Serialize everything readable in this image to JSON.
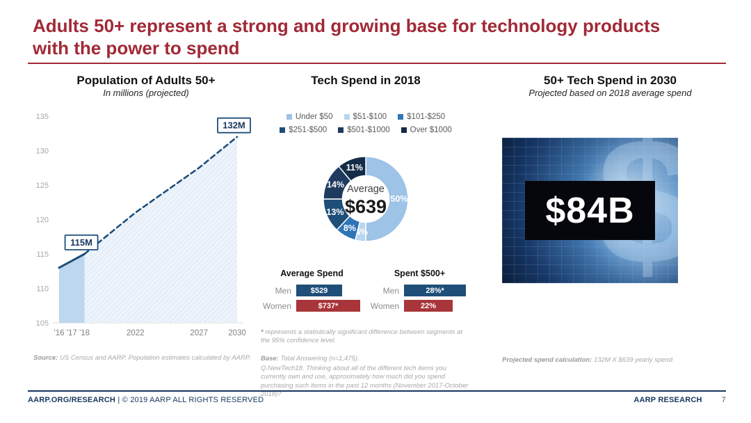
{
  "slide": {
    "title": "Adults 50+ represent a strong and growing base for technology products with the power to spend",
    "accent_red": "#a12936",
    "accent_navy": "#1f4e79",
    "footer_left_bold": "AARP.ORG/RESEARCH",
    "footer_left_rest": " | © 2019 AARP ALL RIGHTS RESERVED",
    "footer_right": "AARP RESEARCH",
    "page_number": "7"
  },
  "chart_data": [
    {
      "type": "line",
      "title": "Population of Adults 50+",
      "subtitle": "In millions (projected)",
      "x": [
        2016,
        2017,
        2018,
        2022,
        2027,
        2030
      ],
      "xtick_labels": [
        "'16",
        "'17",
        "'18",
        "2022",
        "2027",
        "2030"
      ],
      "values": [
        113,
        114,
        115,
        121,
        127.5,
        132
      ],
      "solid_through": 2018,
      "projection_style": "dashed",
      "ylim": [
        105,
        135
      ],
      "yticks": [
        105,
        110,
        115,
        120,
        125,
        130,
        135
      ],
      "annotations": [
        {
          "x": 2018,
          "label": "115M"
        },
        {
          "x": 2030,
          "label": "132M"
        }
      ],
      "line_color": "#1f4e79",
      "area_color": "#bdd7ee",
      "source_bold": "Source:",
      "source_rest": " US Census and AARP. Population estimates calculated by AARP."
    },
    {
      "type": "donut",
      "title": "Tech Spend in 2018",
      "center_label": "Average",
      "center_value": "$639",
      "legend_position": "top",
      "segments": [
        {
          "label": "Under $50",
          "value": 50,
          "color": "#9dc3e6"
        },
        {
          "label": "$51-$100",
          "value": 4,
          "color": "#b9d5ef"
        },
        {
          "label": "$101-$250",
          "value": 8,
          "color": "#2e75b6"
        },
        {
          "label": "$251-$500",
          "value": 13,
          "color": "#1f4e79"
        },
        {
          "label": "$501-$1000",
          "value": 14,
          "color": "#1e3a5f"
        },
        {
          "label": "Over $1000",
          "value": 11,
          "color": "#152c47"
        }
      ]
    },
    {
      "type": "bar",
      "title": "Average Spend",
      "categories": [
        "Men",
        "Women"
      ],
      "values": [
        529,
        737
      ],
      "value_labels": [
        "$529",
        "$737*"
      ],
      "bar_colors": [
        "#1f4e79",
        "#a8353a"
      ],
      "xmax": 760
    },
    {
      "type": "bar",
      "title": "Spent $500+",
      "categories": [
        "Men",
        "Women"
      ],
      "values": [
        28,
        22
      ],
      "value_labels": [
        "28%*",
        "22%"
      ],
      "bar_colors": [
        "#1f4e79",
        "#a8353a"
      ],
      "xmax": 30
    }
  ],
  "tech_spend_notes": {
    "sig_star": "*",
    "sig_rest": " represents a statistically significant difference between segments at the 95% confidence level.",
    "base_bold": "Base:",
    "base_rest": " Total Answering (n=1,475).",
    "question": "Q.NewTech18. Thinking about all of the different tech items you currently own and use, approximately how much did you spend purchasing such items in the past 12 months (November 2017-October 2018)?"
  },
  "spend_2030": {
    "title": "50+ Tech Spend in 2030",
    "subtitle": "Projected based on 2018 average spend",
    "big_value": "$84B",
    "calc_bold": "Projected spend calculation:",
    "calc_rest": " 132M X $639 yearly spend."
  }
}
